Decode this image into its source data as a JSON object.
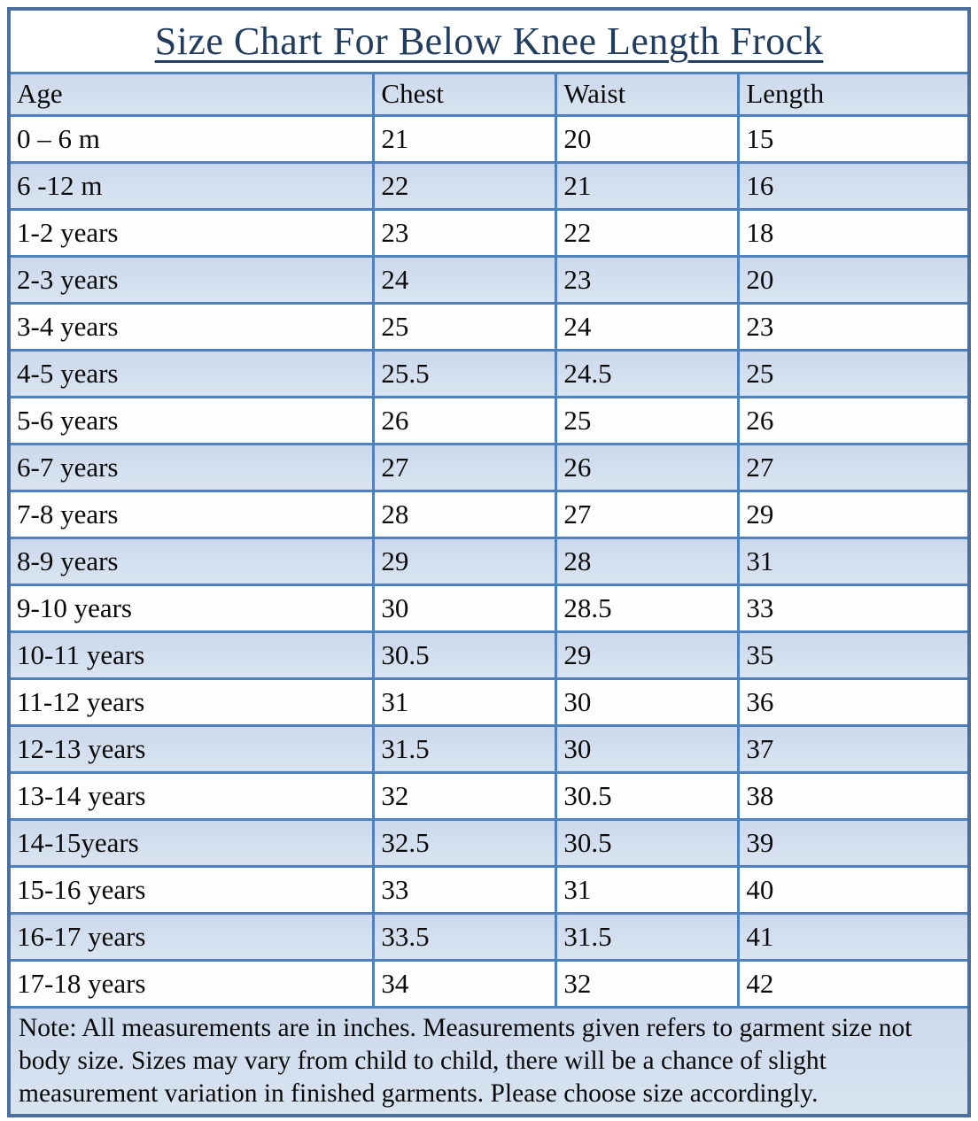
{
  "title": "Size Chart For Below Knee Length Frock",
  "table": {
    "headers": [
      "Age",
      "Chest",
      "Waist",
      "Length"
    ],
    "rows": [
      {
        "age": "0 – 6 m",
        "chest": "21",
        "waist": "20",
        "length": "15"
      },
      {
        "age": "6 -12 m",
        "chest": "22",
        "waist": "21",
        "length": "16"
      },
      {
        "age": "1-2 years",
        "chest": "23",
        "waist": "22",
        "length": "18"
      },
      {
        "age": "2-3 years",
        "chest": "24",
        "waist": "23",
        "length": "20"
      },
      {
        "age": "3-4 years",
        "chest": "25",
        "waist": "24",
        "length": "23"
      },
      {
        "age": "4-5 years",
        "chest": "25.5",
        "waist": "24.5",
        "length": "25"
      },
      {
        "age": "5-6 years",
        "chest": "26",
        "waist": "25",
        "length": "26"
      },
      {
        "age": "6-7 years",
        "chest": "27",
        "waist": "26",
        "length": "27"
      },
      {
        "age": "7-8 years",
        "chest": "28",
        "waist": "27",
        "length": "29"
      },
      {
        "age": "8-9 years",
        "chest": "29",
        "waist": "28",
        "length": "31"
      },
      {
        "age": "9-10 years",
        "chest": "30",
        "waist": "28.5",
        "length": "33"
      },
      {
        "age": "10-11 years",
        "chest": "30.5",
        "waist": "29",
        "length": "35"
      },
      {
        "age": "11-12 years",
        "chest": "31",
        "waist": "30",
        "length": "36"
      },
      {
        "age": "12-13 years",
        "chest": "31.5",
        "waist": "30",
        "length": "37"
      },
      {
        "age": "13-14 years",
        "chest": "32",
        "waist": "30.5",
        "length": "38"
      },
      {
        "age": "14-15years",
        "chest": "32.5",
        "waist": "30.5",
        "length": "39"
      },
      {
        "age": "15-16 years",
        "chest": "33",
        "waist": "31",
        "length": "40"
      },
      {
        "age": "16-17 years",
        "chest": "33.5",
        "waist": "31.5",
        "length": "41"
      },
      {
        "age": "17-18 years",
        "chest": "34",
        "waist": "32",
        "length": "42"
      }
    ]
  },
  "note": "Note: All measurements are in inches. Measurements given refers to garment size not body size. Sizes may vary from child to child, there will be a chance of slight measurement variation in finished garments. Please choose size accordingly.",
  "colors": {
    "inner_border": "#4f81bd",
    "outer_border": "#4d6f9d",
    "band_fill": "#cfdcec",
    "title_color": "#223c5e"
  },
  "chart_data": {
    "type": "table",
    "title": "Size Chart For Below Knee Length Frock",
    "columns": [
      "Age",
      "Chest",
      "Waist",
      "Length"
    ],
    "units": "inches",
    "rows": [
      [
        "0 – 6 m",
        21,
        20,
        15
      ],
      [
        "6 -12 m",
        22,
        21,
        16
      ],
      [
        "1-2 years",
        23,
        22,
        18
      ],
      [
        "2-3 years",
        24,
        23,
        20
      ],
      [
        "3-4 years",
        25,
        24,
        23
      ],
      [
        "4-5 years",
        25.5,
        24.5,
        25
      ],
      [
        "5-6 years",
        26,
        25,
        26
      ],
      [
        "6-7 years",
        27,
        26,
        27
      ],
      [
        "7-8 years",
        28,
        27,
        29
      ],
      [
        "8-9 years",
        29,
        28,
        31
      ],
      [
        "9-10 years",
        30,
        28.5,
        33
      ],
      [
        "10-11 years",
        30.5,
        29,
        35
      ],
      [
        "11-12 years",
        31,
        30,
        36
      ],
      [
        "12-13 years",
        31.5,
        30,
        37
      ],
      [
        "13-14 years",
        32,
        30.5,
        38
      ],
      [
        "14-15years",
        32.5,
        30.5,
        39
      ],
      [
        "15-16 years",
        33,
        31,
        40
      ],
      [
        "16-17 years",
        33.5,
        31.5,
        41
      ],
      [
        "17-18 years",
        34,
        32,
        42
      ]
    ],
    "note": "Note: All measurements are in inches. Measurements given refers to garment size not body size. Sizes may vary from child to child, there will be a chance of slight measurement variation in finished garments. Please choose size accordingly."
  }
}
